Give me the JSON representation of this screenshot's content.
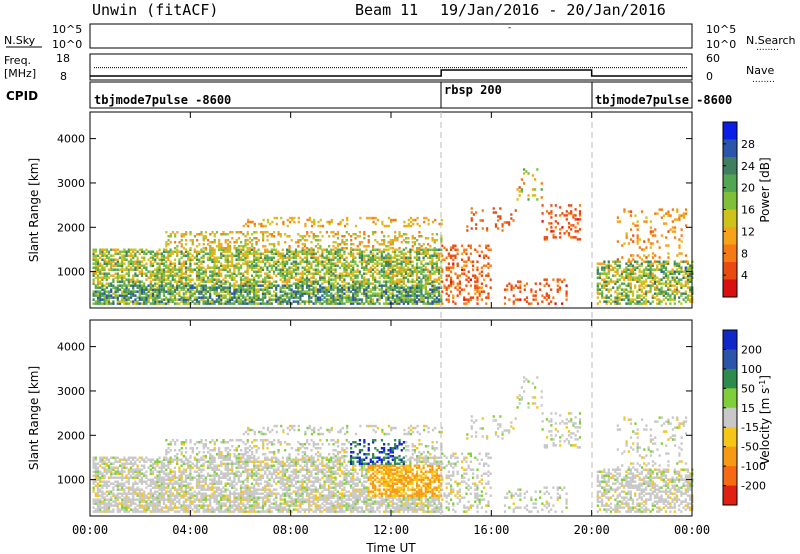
{
  "header": {
    "station": "Unwin (fitACF)",
    "beam": "Beam 11",
    "date_range": "19/Jan/2016 - 20/Jan/2016"
  },
  "left_labels": {
    "nsky": "N.Sky",
    "freq_line1": "Freq.",
    "freq_line2": "[MHz]",
    "cpid": "CPID"
  },
  "right_labels": {
    "nsearch": "N.Search",
    "nave": "Nave",
    "dots": "........"
  },
  "noise_panel": {
    "tick_top": "10^5",
    "tick_bottom": "10^0"
  },
  "freq_panel": {
    "left_ticks": [
      "18",
      "8"
    ],
    "right_ticks": [
      "60",
      "0"
    ]
  },
  "cpid_panel": {
    "segments": [
      {
        "label": "tbjmode7pulse -8600",
        "start": 0,
        "end": 14
      },
      {
        "label": "rbsp 200",
        "start": 14,
        "end": 20
      },
      {
        "label": "tbjmode7pulse -8600",
        "start": 20,
        "end": 24
      }
    ]
  },
  "chart_data": [
    {
      "type": "heatmap",
      "name": "power",
      "ylabel": "Slant Range [km]",
      "xlabel": "Time UT",
      "x_ticks": [
        "00:00",
        "04:00",
        "08:00",
        "12:00",
        "16:00",
        "20:00",
        "00:00"
      ],
      "x_range_hours": [
        0,
        24
      ],
      "y_ticks": [
        1000,
        2000,
        3000,
        4000
      ],
      "ylim": [
        180,
        4600
      ],
      "colorbar": {
        "label": "Power [dB]",
        "ticks": [
          4,
          8,
          12,
          16,
          20,
          24,
          28
        ],
        "colors": [
          "#0a1ee6",
          "#2a55a8",
          "#3f7f5f",
          "#52a552",
          "#7fbf3a",
          "#cfc21a",
          "#f5a31a",
          "#f57a14",
          "#e84a12",
          "#d81010"
        ]
      }
    },
    {
      "type": "heatmap",
      "name": "velocity",
      "ylabel": "Slant Range [km]",
      "xlabel": "Time UT",
      "x_ticks": [
        "00:00",
        "04:00",
        "08:00",
        "12:00",
        "16:00",
        "20:00",
        "00:00"
      ],
      "x_range_hours": [
        0,
        24
      ],
      "y_ticks": [
        1000,
        2000,
        3000,
        4000
      ],
      "ylim": [
        180,
        4600
      ],
      "colorbar": {
        "label": "Velocity [m s",
        "label_sup": "-1",
        "label_end": "]",
        "ticks": [
          200,
          100,
          50,
          15,
          -15,
          -50,
          -100,
          -200
        ],
        "colors": [
          "#1028c8",
          "#2a55a8",
          "#2f8a4e",
          "#7fcf3a",
          "#c8c8c8",
          "#f5c518",
          "#f59a12",
          "#f56a12",
          "#e02010"
        ]
      }
    }
  ],
  "colors": {
    "background": "#ffffff",
    "dashed_line": "#bbbbbb"
  }
}
